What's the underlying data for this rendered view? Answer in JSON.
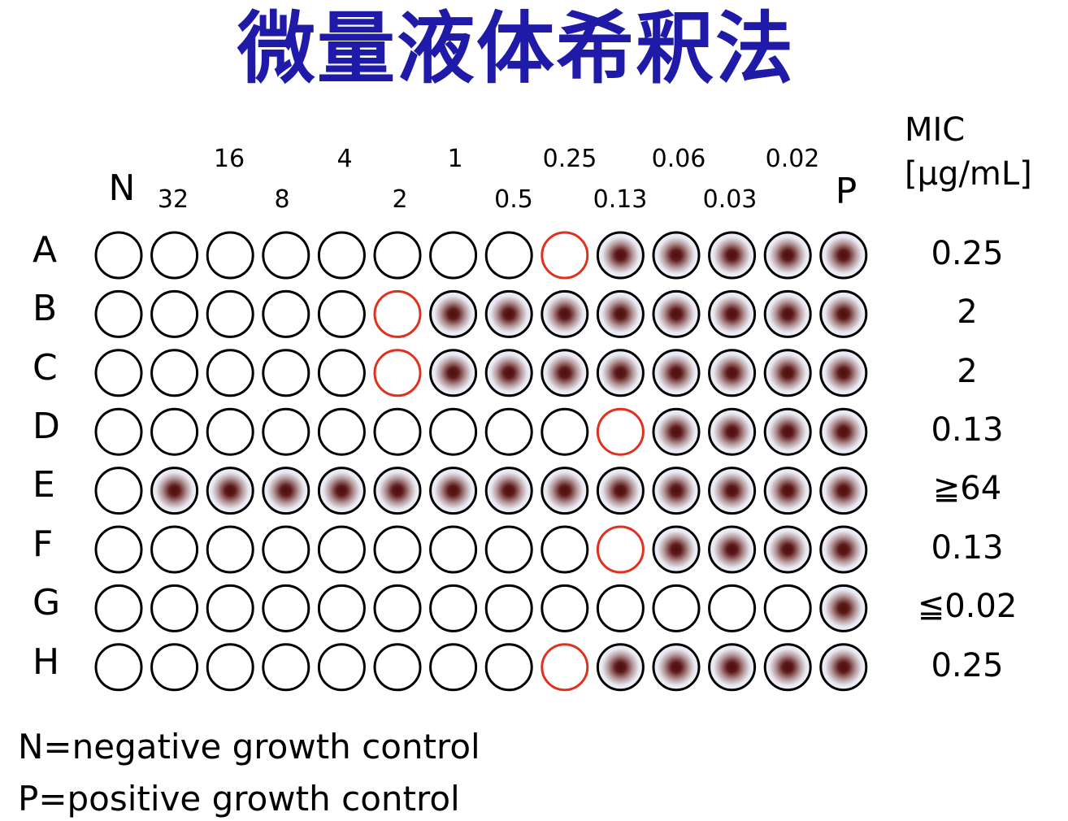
{
  "title": "微量液体希釈法",
  "column_header": {
    "negative_label": "N",
    "positive_label": "P",
    "concentrations_top": [
      "16",
      "4",
      "1",
      "0.25",
      "0.06",
      "0.02"
    ],
    "concentrations_bottom": [
      "32",
      "8",
      "2",
      "0.5",
      "0.13",
      "0.03"
    ]
  },
  "mic_header": {
    "line1": "MIC",
    "line2": "[μg/mL]"
  },
  "rows": [
    {
      "label": "A",
      "mic": "0.25",
      "wells": [
        "empty",
        "empty",
        "empty",
        "empty",
        "empty",
        "empty",
        "empty",
        "empty",
        "mic",
        "growth",
        "growth",
        "growth",
        "growth",
        "growth"
      ]
    },
    {
      "label": "B",
      "mic": "2",
      "wells": [
        "empty",
        "empty",
        "empty",
        "empty",
        "empty",
        "mic",
        "growth",
        "growth",
        "growth",
        "growth",
        "growth",
        "growth",
        "growth",
        "growth"
      ]
    },
    {
      "label": "C",
      "mic": "2",
      "wells": [
        "empty",
        "empty",
        "empty",
        "empty",
        "empty",
        "mic",
        "growth",
        "growth",
        "growth",
        "growth",
        "growth",
        "growth",
        "growth",
        "growth"
      ]
    },
    {
      "label": "D",
      "mic": "0.13",
      "wells": [
        "empty",
        "empty",
        "empty",
        "empty",
        "empty",
        "empty",
        "empty",
        "empty",
        "empty",
        "mic",
        "growth",
        "growth",
        "growth",
        "growth"
      ]
    },
    {
      "label": "E",
      "mic": "≧64",
      "wells": [
        "empty",
        "growth",
        "growth",
        "growth",
        "growth",
        "growth",
        "growth",
        "growth",
        "growth",
        "growth",
        "growth",
        "growth",
        "growth",
        "growth"
      ]
    },
    {
      "label": "F",
      "mic": "0.13",
      "wells": [
        "empty",
        "empty",
        "empty",
        "empty",
        "empty",
        "empty",
        "empty",
        "empty",
        "empty",
        "mic",
        "growth",
        "growth",
        "growth",
        "growth"
      ]
    },
    {
      "label": "G",
      "mic": "≦0.02",
      "wells": [
        "empty",
        "empty",
        "empty",
        "empty",
        "empty",
        "empty",
        "empty",
        "empty",
        "empty",
        "empty",
        "empty",
        "empty",
        "empty",
        "growth"
      ]
    },
    {
      "label": "H",
      "mic": "0.25",
      "wells": [
        "empty",
        "empty",
        "empty",
        "empty",
        "empty",
        "empty",
        "empty",
        "empty",
        "mic",
        "growth",
        "growth",
        "growth",
        "growth",
        "growth"
      ]
    }
  ],
  "legend": {
    "negative": "N=negative growth control",
    "positive": "P=positive growth control"
  },
  "colors": {
    "title": "#1f1aa8",
    "well_outline": "#000000",
    "mic_outline": "#e0311f",
    "growth_center": "#5a1414",
    "growth_halo": "#eef0f8"
  }
}
